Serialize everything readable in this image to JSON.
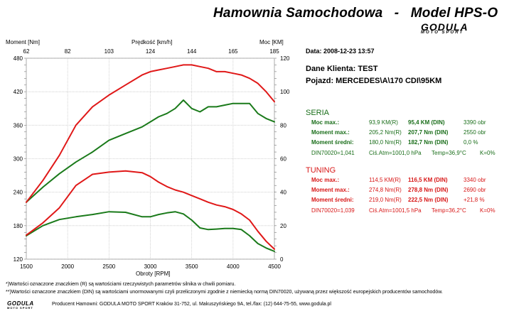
{
  "header": {
    "title": "Hamownia Samochodowa   -   Model HPS-O",
    "logo_word": "GODULA",
    "logo_sub": "MOTO SPORT"
  },
  "chart_data": {
    "type": "line",
    "x_axis": {
      "label": "Obroty [RPM]",
      "range": [
        1500,
        4500
      ],
      "ticks": [
        1500,
        2000,
        2500,
        3000,
        3500,
        4000,
        4500
      ]
    },
    "y_left": {
      "label": "Moment [Nm]",
      "range": [
        120,
        480
      ],
      "ticks": [
        120,
        180,
        240,
        300,
        360,
        420,
        480
      ]
    },
    "y_right": {
      "label": "Moc [KM]",
      "range": [
        0,
        120
      ],
      "ticks": [
        0,
        20,
        40,
        60,
        80,
        100,
        120
      ]
    },
    "x_top": {
      "label": "Prędkość [km/h]",
      "ticks": [
        "62",
        "82",
        "103",
        "124",
        "144",
        "165",
        "185"
      ]
    },
    "grid": true,
    "series": [
      {
        "name": "SERIA moment",
        "color": "#1a7a1a",
        "axis": "left",
        "x": [
          1500,
          1700,
          1900,
          2100,
          2300,
          2500,
          2700,
          2900,
          3000,
          3100,
          3200,
          3300,
          3400,
          3500,
          3600,
          3700,
          3800,
          3900,
          4000,
          4100,
          4200,
          4300,
          4400,
          4500
        ],
        "y": [
          162,
          180,
          191,
          196,
          200,
          205,
          204,
          196,
          196,
          200,
          203,
          205,
          201,
          190,
          176,
          173,
          174,
          175,
          175,
          173,
          162,
          148,
          140,
          134
        ]
      },
      {
        "name": "SERIA moc",
        "color": "#1a7a1a",
        "axis": "right",
        "x": [
          1500,
          1700,
          1900,
          2100,
          2300,
          2500,
          2700,
          2900,
          3000,
          3100,
          3200,
          3300,
          3400,
          3500,
          3600,
          3700,
          3800,
          3900,
          4000,
          4100,
          4200,
          4300,
          4400,
          4500
        ],
        "y": [
          34,
          43,
          51,
          58,
          64,
          71,
          75,
          79,
          82,
          85,
          87,
          90,
          95,
          90,
          88,
          91,
          91,
          92,
          93,
          93,
          93,
          87,
          84,
          82
        ]
      },
      {
        "name": "TUNING moment",
        "color": "#e01818",
        "axis": "left",
        "x": [
          1500,
          1700,
          1900,
          2100,
          2300,
          2500,
          2700,
          2900,
          3000,
          3100,
          3200,
          3300,
          3400,
          3500,
          3600,
          3700,
          3800,
          3900,
          4000,
          4100,
          4200,
          4300,
          4400,
          4500
        ],
        "y": [
          163,
          185,
          212,
          252,
          272,
          276,
          278,
          275,
          268,
          258,
          250,
          244,
          240,
          234,
          228,
          222,
          217,
          214,
          209,
          201,
          190,
          170,
          152,
          138
        ]
      },
      {
        "name": "TUNING moc",
        "color": "#e01818",
        "axis": "right",
        "x": [
          1500,
          1700,
          1900,
          2100,
          2300,
          2500,
          2700,
          2900,
          3000,
          3100,
          3200,
          3300,
          3400,
          3500,
          3600,
          3700,
          3800,
          3900,
          4000,
          4100,
          4200,
          4300,
          4400,
          4500
        ],
        "y": [
          34,
          47,
          62,
          80,
          91,
          98,
          104,
          110,
          112,
          113,
          114,
          115,
          116,
          116,
          115,
          114,
          112,
          112,
          111,
          110,
          108,
          105,
          100,
          94
        ]
      }
    ]
  },
  "test_info": {
    "date": "Data: 2008-12-23  13:57",
    "client": "Dane Klienta: TEST",
    "vehicle": "Pojazd: MERCEDES\\A\\170 CDI\\95KM"
  },
  "seria": {
    "heading": "SERIA",
    "rows": [
      {
        "label": "Moc max.:",
        "v1": "93,9 KM(R)",
        "v2": "95,4 KM (DIN)",
        "v3": "3390 obr"
      },
      {
        "label": "Moment max.:",
        "v1": "205,2 Nm(R)",
        "v2": "207,7 Nm (DIN)",
        "v3": "2550 obr"
      },
      {
        "label": "Moment średni:",
        "v1": "180,0 Nm(R)",
        "v2": "182,7 Nm (DIN)",
        "v3": "0,0 %"
      }
    ],
    "din": "DIN70020=1,041",
    "atm": "Ciś.Atm=1001,0 hPa",
    "temp": "Temp=36,9°C",
    "k": "K=0%"
  },
  "tuning": {
    "heading": "TUNING",
    "rows": [
      {
        "label": "Moc max.:",
        "v1": "114,5 KM(R)",
        "v2": "116,5 KM (DIN)",
        "v3": "3340 obr"
      },
      {
        "label": "Moment max.:",
        "v1": "274,8 Nm(R)",
        "v2": "278,8 Nm (DIN)",
        "v3": "2690 obr"
      },
      {
        "label": "Moment średni:",
        "v1": "219,0 Nm(R)",
        "v2": "222,5 Nm (DIN)",
        "v3": "+21,8 %"
      }
    ],
    "din": "DIN70020=1,039",
    "atm": "Ciś.Atm=1001,5 hPa",
    "temp": "Temp=36,2°C",
    "k": "K=0%"
  },
  "footer": {
    "note1": "*)Wartości oznaczone znaczkiem (R) są wartościami rzeczywistych parametrów silnika w chwili pomiaru.",
    "note2": "**)Wartości oznaczone znaczkiem (DIN) są wartościami unormowanymi czyli przeliczonymi zgodnie z niemiecką normą DIN70020, używaną przez większość europejskich producentów samochodów.",
    "producer": "Producent Hamowni: GODULA MOTO SPORT Kraków 31-752, ul. Makuszyńskiego 9A, tel./fax: (12) 644-75-55, www.godula.pl",
    "logo_word": "GODULA",
    "logo_sub": "MOTO SPORT"
  }
}
